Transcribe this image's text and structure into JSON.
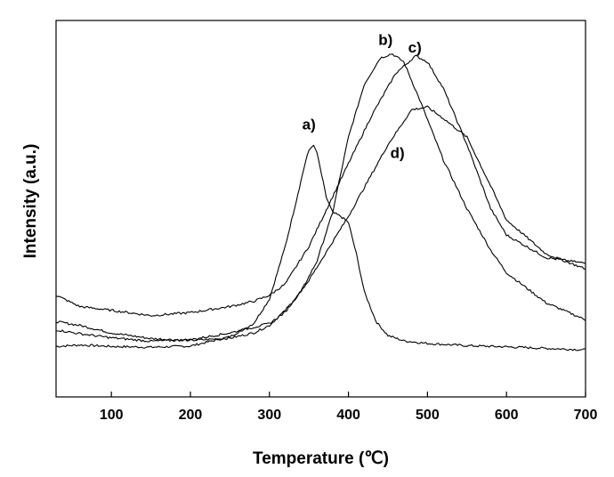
{
  "chart_data": {
    "type": "line",
    "title": "",
    "xlabel": "Temperature (℃)",
    "ylabel": "Intensity (a.u.)",
    "xlim": [
      30,
      700
    ],
    "ylim": [
      0,
      100
    ],
    "x_ticks": [
      100,
      200,
      300,
      400,
      500,
      600,
      700
    ],
    "y_ticks": [],
    "grid": false,
    "legend": "none",
    "series": [
      {
        "name": "a)",
        "x": [
          30,
          60,
          100,
          150,
          200,
          250,
          280,
          300,
          320,
          335,
          345,
          350,
          355,
          360,
          365,
          372,
          380,
          390,
          400,
          410,
          420,
          435,
          450,
          470,
          500,
          550,
          600,
          650,
          700
        ],
        "y": [
          13.4,
          13.8,
          13.4,
          13.2,
          13.5,
          16,
          19.5,
          26,
          40,
          53,
          62,
          65.5,
          67,
          65,
          60,
          53,
          49,
          48,
          46.3,
          38,
          28,
          20,
          16.3,
          14.9,
          14.2,
          13.6,
          13.3,
          12.9,
          12.5
        ]
      },
      {
        "name": "b)",
        "x": [
          30,
          60,
          100,
          150,
          200,
          250,
          280,
          300,
          320,
          340,
          360,
          380,
          400,
          420,
          440,
          455,
          470,
          490,
          520,
          550,
          580,
          600,
          650,
          700
        ],
        "y": [
          20,
          19,
          17,
          15.5,
          15,
          15.6,
          17,
          19,
          23,
          28,
          36,
          49,
          69,
          83,
          90,
          91.2,
          89,
          79,
          63,
          50,
          39,
          33,
          25,
          20.5
        ]
      },
      {
        "name": "c)",
        "x": [
          30,
          60,
          100,
          150,
          200,
          250,
          280,
          300,
          320,
          350,
          400,
          430,
          460,
          485,
          500,
          520,
          550,
          580,
          600,
          650,
          700
        ],
        "y": [
          27,
          24,
          23,
          21.6,
          22.4,
          24,
          25.4,
          27,
          30,
          40,
          62,
          75,
          86,
          90.6,
          89,
          82,
          67,
          50,
          43,
          37,
          35.5
        ]
      },
      {
        "name": "d)",
        "x": [
          30,
          60,
          100,
          150,
          200,
          250,
          300,
          320,
          350,
          400,
          450,
          480,
          500,
          520,
          550,
          580,
          600,
          650,
          700
        ],
        "y": [
          17.8,
          16.8,
          15.7,
          14.8,
          15.2,
          17,
          19.5,
          22.5,
          31,
          48,
          67,
          76.3,
          77,
          74,
          69,
          56,
          47,
          38,
          34
        ]
      }
    ],
    "annotations": [
      {
        "text": "a)",
        "x": 350,
        "y": 71
      },
      {
        "text": "b)",
        "x": 447,
        "y": 93.5
      },
      {
        "text": "c)",
        "x": 484,
        "y": 91.5
      },
      {
        "text": "d)",
        "x": 462,
        "y": 63.5
      }
    ]
  }
}
